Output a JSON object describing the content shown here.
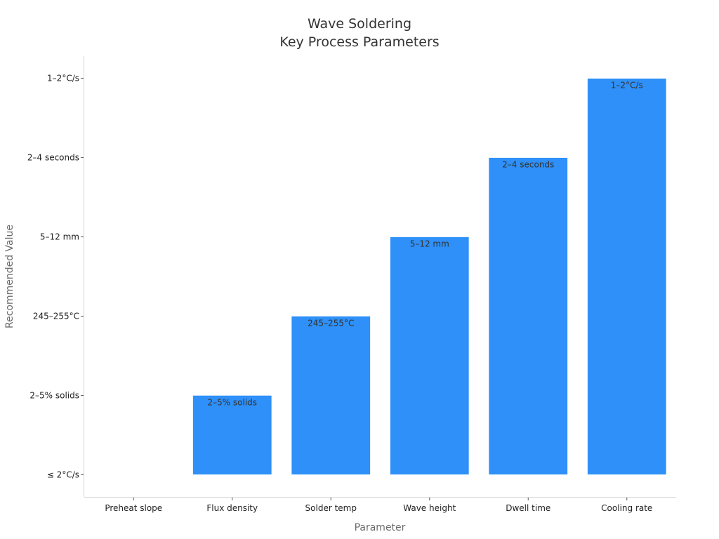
{
  "chart_data": {
    "type": "bar",
    "title": [
      "Wave Soldering",
      "Key Process Parameters"
    ],
    "xlabel": "Parameter",
    "ylabel": "Recommended Value",
    "categories": [
      "Preheat slope",
      "Flux density",
      "Solder temp",
      "Wave height",
      "Dwell time",
      "Cooling rate"
    ],
    "values": [
      0,
      1,
      2,
      3,
      4,
      5
    ],
    "ytick_labels": [
      "≤ 2°C/s",
      "2–5% solids",
      "245–255°C",
      "5–12 mm",
      "2–4 seconds",
      "1–2°C/s"
    ],
    "data_labels": [
      "",
      "2–5% solids",
      "245–255°C",
      "5–12 mm",
      "2–4 seconds",
      "1–2°C/s"
    ],
    "ylim": [
      -0.28,
      5.28
    ],
    "grid": false,
    "colors": {
      "bar": "#2e90f8"
    }
  }
}
